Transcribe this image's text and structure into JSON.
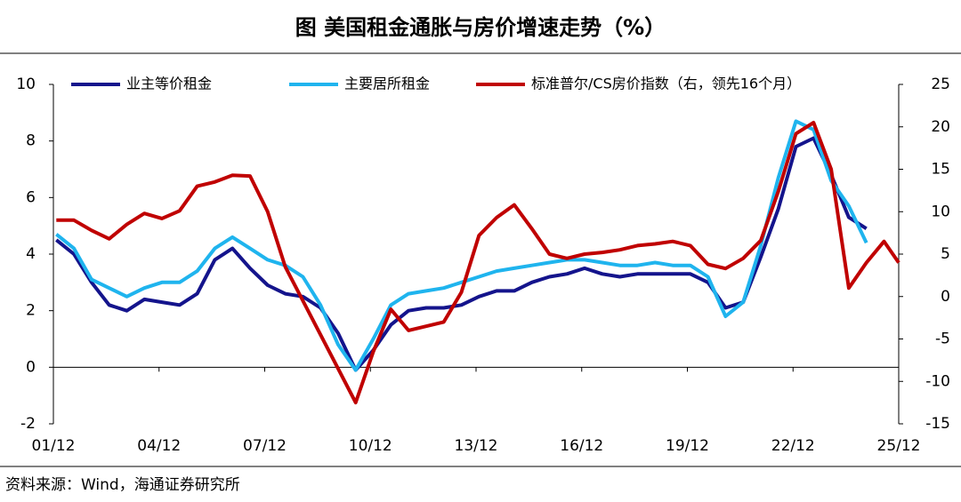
{
  "chart_data": {
    "type": "line",
    "title": "图  美国租金通胀与房价增速走势（%）",
    "source": "资料来源：Wind，海通证券研究所",
    "x": [
      2002,
      2002.5,
      2003,
      2003.5,
      2004,
      2004.5,
      2005,
      2005.5,
      2006,
      2006.5,
      2007,
      2007.5,
      2008,
      2008.5,
      2009,
      2009.5,
      2010,
      2010.5,
      2011,
      2011.5,
      2012,
      2012.5,
      2013,
      2013.5,
      2014,
      2014.5,
      2015,
      2015.5,
      2016,
      2016.5,
      2017,
      2017.5,
      2018,
      2018.5,
      2019,
      2019.5,
      2020,
      2020.5,
      2021,
      2021.5,
      2022,
      2022.5,
      2023,
      2023.5,
      2024,
      2024.5,
      2025,
      2025.5,
      2025.917
    ],
    "xlim": [
      2001.917,
      2025.917
    ],
    "xticks": [
      {
        "value": 2001.917,
        "label": "01/12"
      },
      {
        "value": 2004.917,
        "label": "04/12"
      },
      {
        "value": 2007.917,
        "label": "07/12"
      },
      {
        "value": 2010.917,
        "label": "10/12"
      },
      {
        "value": 2013.917,
        "label": "13/12"
      },
      {
        "value": 2016.917,
        "label": "16/12"
      },
      {
        "value": 2019.917,
        "label": "19/12"
      },
      {
        "value": 2022.917,
        "label": "22/12"
      },
      {
        "value": 2025.917,
        "label": "25/12"
      }
    ],
    "ylim": [
      -2,
      10
    ],
    "yticks": [
      -2,
      0,
      2,
      4,
      6,
      8,
      10
    ],
    "y2lim": [
      -15,
      25
    ],
    "y2ticks": [
      -15,
      -10,
      -5,
      0,
      5,
      10,
      15,
      20,
      25
    ],
    "series": [
      {
        "name": "业主等价租金",
        "color": "#14148c",
        "axis": "y",
        "values": [
          4.5,
          4.0,
          3.0,
          2.2,
          2.0,
          2.4,
          2.3,
          2.2,
          2.6,
          3.8,
          4.2,
          3.5,
          2.9,
          2.6,
          2.5,
          2.1,
          1.2,
          -0.1,
          0.6,
          1.5,
          2.0,
          2.1,
          2.1,
          2.2,
          2.5,
          2.7,
          2.7,
          3.0,
          3.2,
          3.3,
          3.5,
          3.3,
          3.2,
          3.3,
          3.3,
          3.3,
          3.3,
          3.0,
          2.1,
          2.3,
          3.9,
          5.6,
          7.8,
          8.1,
          6.8,
          5.3,
          4.9,
          null,
          null
        ]
      },
      {
        "name": "主要居所租金",
        "color": "#1fb4ee",
        "axis": "y",
        "values": [
          4.7,
          4.2,
          3.1,
          2.8,
          2.5,
          2.8,
          3.0,
          3.0,
          3.4,
          4.2,
          4.6,
          4.2,
          3.8,
          3.6,
          3.2,
          2.2,
          0.8,
          -0.1,
          1.0,
          2.2,
          2.6,
          2.7,
          2.8,
          3.0,
          3.2,
          3.4,
          3.5,
          3.6,
          3.7,
          3.8,
          3.8,
          3.7,
          3.6,
          3.6,
          3.7,
          3.6,
          3.6,
          3.2,
          1.8,
          2.3,
          4.3,
          6.7,
          8.7,
          8.4,
          6.6,
          5.7,
          4.4,
          null,
          null
        ]
      },
      {
        "name": "标准普尔/CS房价指数（右，领先16个月）",
        "color": "#c00000",
        "axis": "y2",
        "values": [
          9.0,
          9.0,
          7.8,
          6.8,
          8.5,
          9.8,
          9.2,
          10.1,
          13.0,
          13.5,
          14.3,
          14.2,
          10.0,
          3.5,
          -0.5,
          -4.5,
          -8.5,
          -12.5,
          -6.5,
          -1.5,
          -4.0,
          -3.5,
          -3.0,
          0.5,
          7.2,
          9.3,
          10.8,
          8.0,
          5.0,
          4.5,
          5.0,
          5.2,
          5.5,
          6.0,
          6.2,
          6.5,
          6.0,
          3.8,
          3.3,
          4.5,
          6.6,
          12.4,
          19.2,
          20.5,
          15.0,
          1.0,
          4.0,
          6.5,
          4.0
        ]
      }
    ]
  }
}
